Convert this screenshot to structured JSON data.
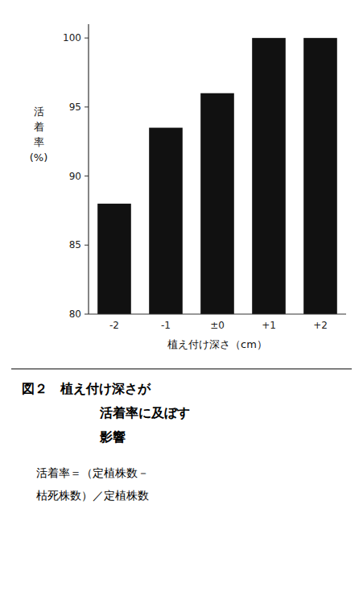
{
  "chart_data": {
    "type": "bar",
    "title": [
      "図２　植え付け深さが",
      "活着率に及ぼす",
      "影響"
    ],
    "xlabel": "植え付け深さ（cm）",
    "ylabel": [
      "活",
      "着",
      "率",
      "(%)"
    ],
    "annotations": [
      "活着率＝（定植株数－",
      "枯死株数）／定植株数"
    ],
    "categories": [
      "-2",
      "-1",
      "±0",
      "+1",
      "+2"
    ],
    "values": [
      88.0,
      93.5,
      96.0,
      100.0,
      100.0
    ],
    "color": "#111111",
    "ylim": [
      80,
      101
    ],
    "yticks": [
      80,
      85,
      90,
      95,
      100
    ],
    "grid": false
  }
}
